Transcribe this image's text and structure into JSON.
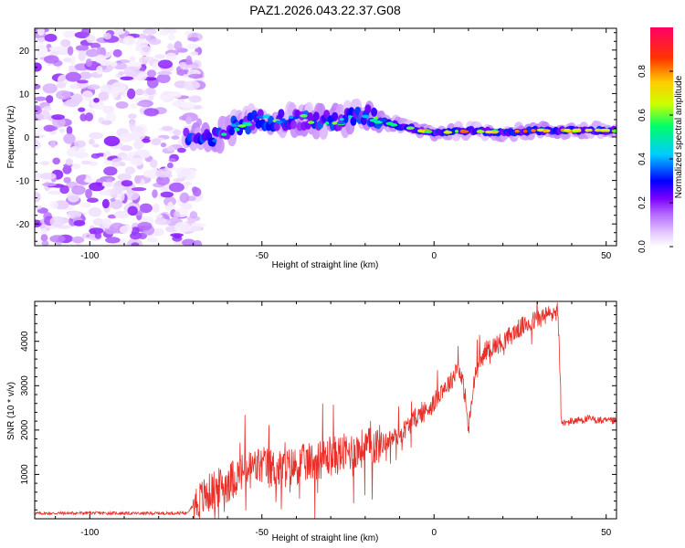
{
  "title": "PAZ1.2026.043.22.37.G08",
  "chart_data": [
    {
      "type": "heatmap",
      "title": "PAZ1.2026.043.22.37.G08",
      "xlabel": "Height of straight line (km)",
      "ylabel": "Frequency (Hz)",
      "xlim": [
        -116,
        53
      ],
      "ylim": [
        -25,
        25
      ],
      "xticks": [
        -100,
        -50,
        0,
        50
      ],
      "yticks": [
        -20,
        -10,
        0,
        10,
        20
      ],
      "colorbar": {
        "label": "Normalized spectral amplitude",
        "range": [
          0,
          1
        ],
        "ticks": [
          0.0,
          0.2,
          0.4,
          0.6,
          0.8
        ],
        "palette": [
          "#ffffff",
          "#e6ccff",
          "#b266ff",
          "#7a00ff",
          "#0000ff",
          "#00ccff",
          "#00ff66",
          "#ccff00",
          "#ffcc00",
          "#ff3300",
          "#ff0066"
        ]
      },
      "ridge": [
        {
          "x": -72,
          "y": 0.0
        },
        {
          "x": -65,
          "y": -1.0
        },
        {
          "x": -58,
          "y": 2.5
        },
        {
          "x": -50,
          "y": 4.0
        },
        {
          "x": -40,
          "y": 4.0
        },
        {
          "x": -30,
          "y": 3.5
        },
        {
          "x": -20,
          "y": 5.0
        },
        {
          "x": -10,
          "y": 2.5
        },
        {
          "x": 0,
          "y": 1.0
        },
        {
          "x": 10,
          "y": 1.5
        },
        {
          "x": 20,
          "y": 1.0
        },
        {
          "x": 30,
          "y": 1.5
        },
        {
          "x": 40,
          "y": 1.5
        },
        {
          "x": 53,
          "y": 1.5
        }
      ],
      "noise_region_x": [
        -116,
        -72
      ]
    },
    {
      "type": "line",
      "xlabel": "Height of straight line (km)",
      "ylabel": "SNR (10 * v/v)",
      "xlim": [
        -116,
        53
      ],
      "ylim": [
        0,
        4900
      ],
      "xticks": [
        -100,
        -50,
        0,
        50
      ],
      "yticks": [
        1000,
        2000,
        3000,
        4000
      ],
      "series": [
        {
          "name": "SNR",
          "color": "#e8302a",
          "x": [
            -116,
            -100,
            -85,
            -72,
            -70,
            -65,
            -60,
            -55,
            -50,
            -45,
            -40,
            -35,
            -30,
            -25,
            -20,
            -15,
            -10,
            -5,
            0,
            2,
            5,
            7,
            9,
            10,
            12,
            15,
            20,
            25,
            30,
            35,
            36,
            37,
            38,
            40,
            45,
            50,
            53
          ],
          "y": [
            120,
            130,
            120,
            130,
            300,
            600,
            800,
            1100,
            1200,
            1100,
            1200,
            1300,
            1400,
            1500,
            1600,
            1700,
            1900,
            2300,
            2600,
            2900,
            3100,
            3500,
            2800,
            2000,
            3300,
            3800,
            4000,
            4300,
            4500,
            4650,
            4700,
            2200,
            2150,
            2200,
            2250,
            2200,
            2200
          ]
        }
      ]
    }
  ]
}
